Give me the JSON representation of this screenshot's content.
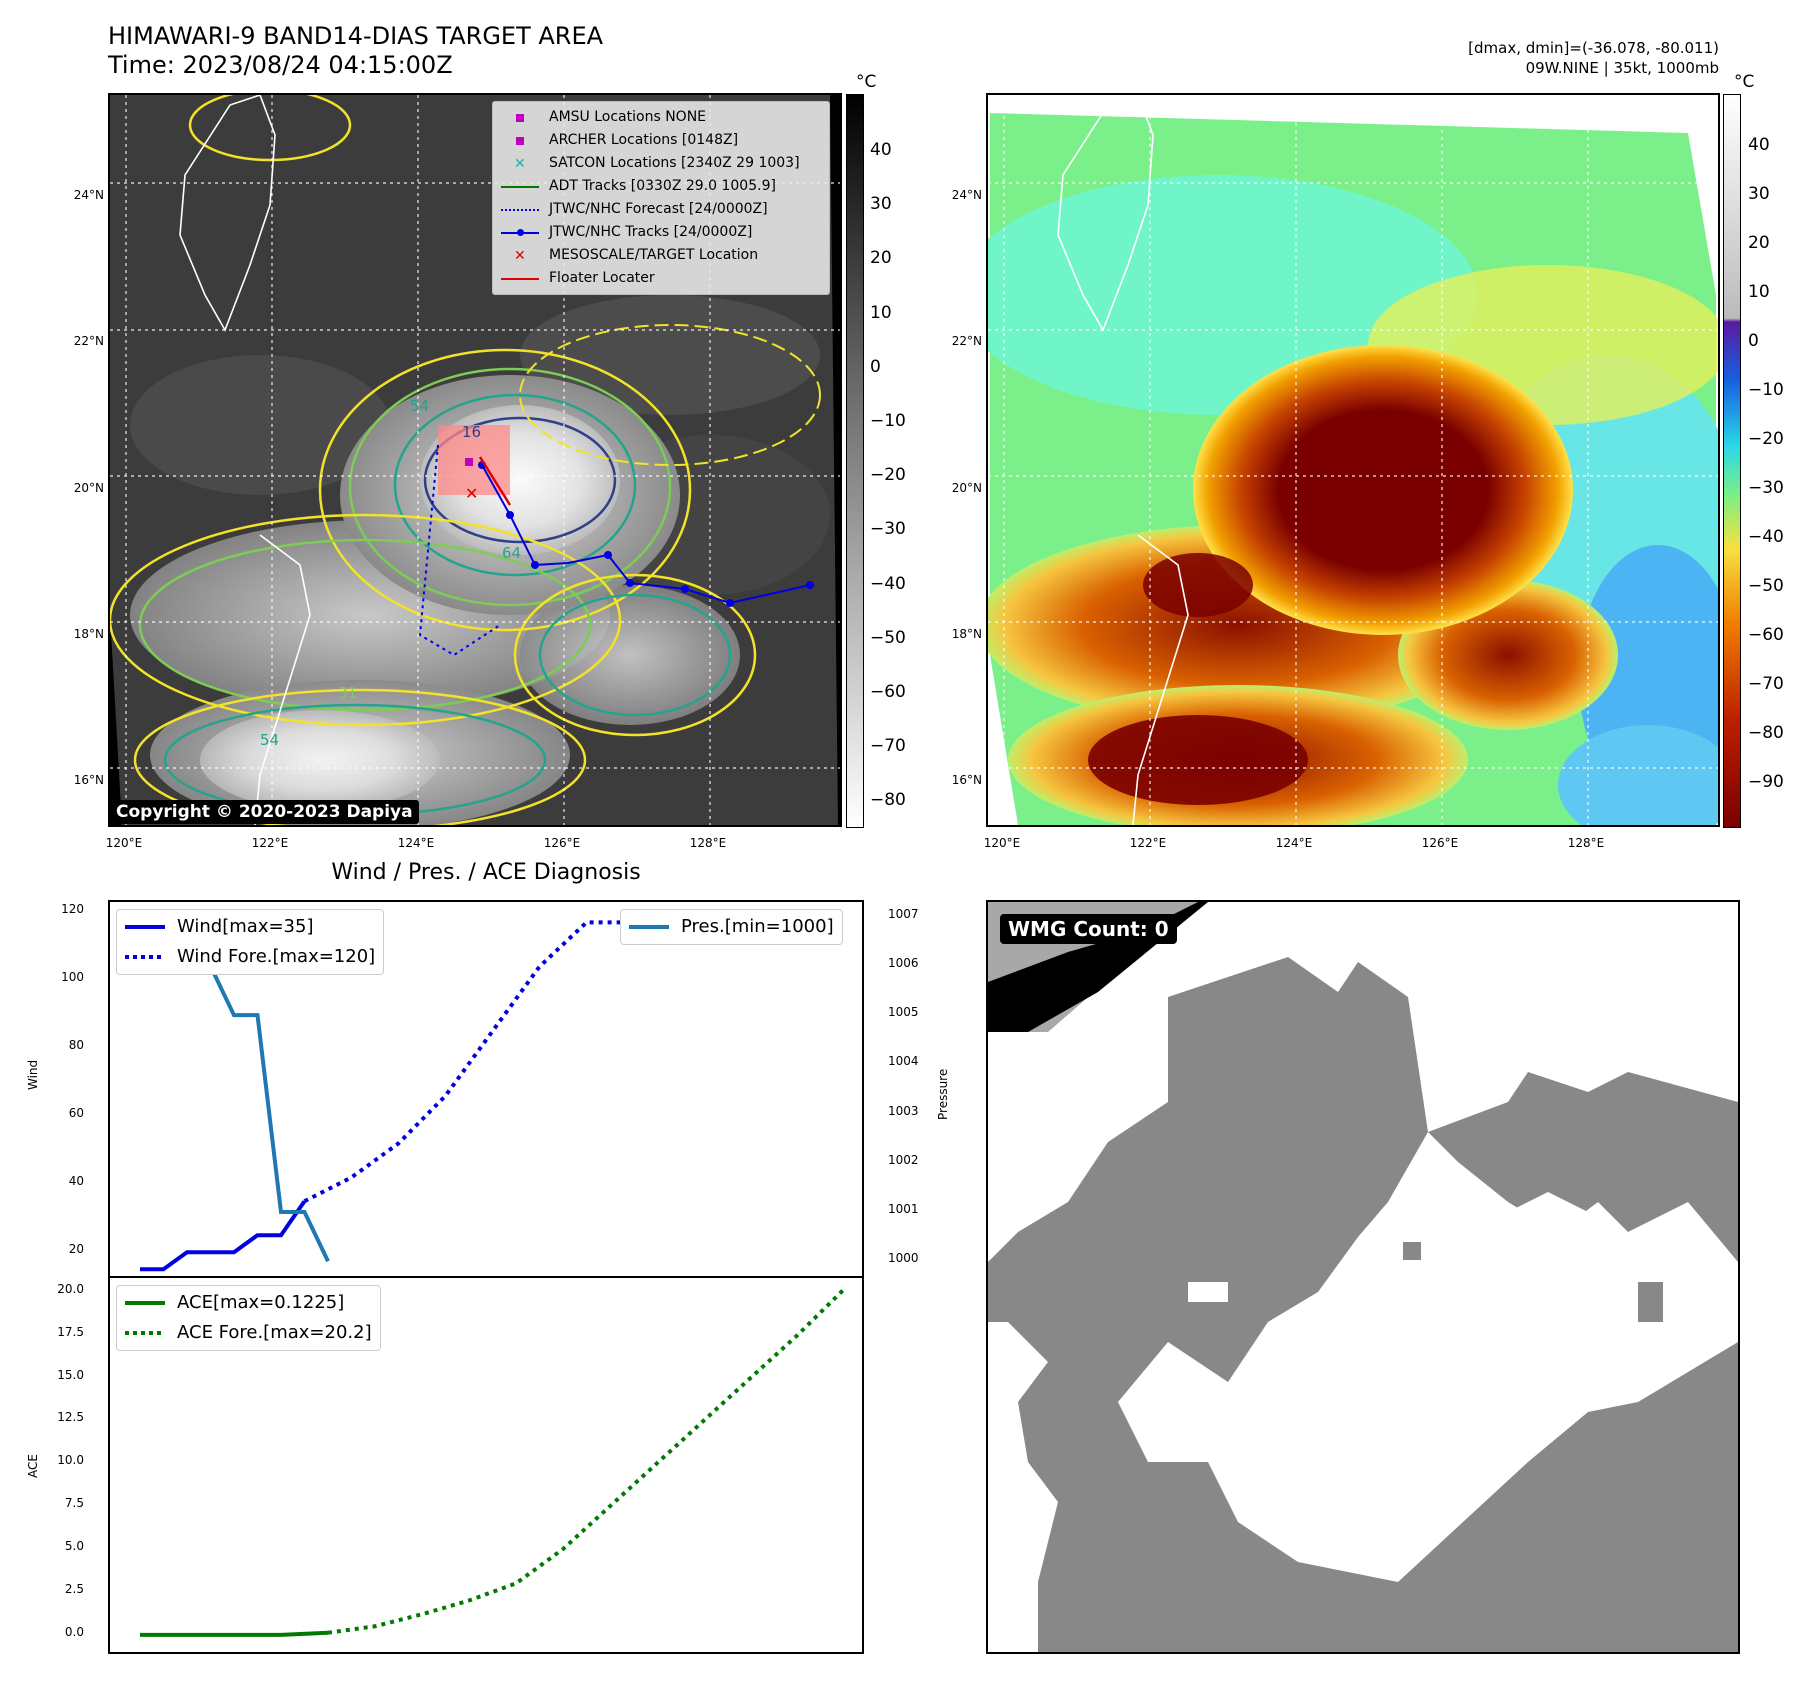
{
  "header": {
    "title_line1": "HIMAWARI-9 BAND14-DIAS TARGET AREA",
    "title_line2": "Time: 2023/08/24 04:15:00Z",
    "right_line1": "[dmax, dmin]=(-36.078, -80.011)",
    "right_line2": "09W.NINE | 35kt, 1000mb"
  },
  "map_axes": {
    "lat_labels": [
      "24°N",
      "22°N",
      "20°N",
      "18°N",
      "16°N"
    ],
    "lon_labels": [
      "120°E",
      "122°E",
      "124°E",
      "126°E",
      "128°E"
    ]
  },
  "left_map": {
    "copyright": "Copyright © 2020-2023 Dapiya",
    "contour_labels": [
      "54",
      "16",
      "64",
      "31",
      "54"
    ],
    "legend": [
      {
        "label": "AMSU Locations NONE",
        "marker": "square",
        "color": "#c000c0"
      },
      {
        "label": "ARCHER Locations [0148Z]",
        "marker": "square",
        "color": "#c000c0"
      },
      {
        "label": "SATCON Locations [2340Z 29 1003]",
        "marker": "x",
        "color": "#1ab0b0"
      },
      {
        "label": "ADT Tracks [0330Z 29.0 1005.9]",
        "marker": "line",
        "color": "#007a00"
      },
      {
        "label": "JTWC/NHC Forecast [24/0000Z]",
        "marker": "dotted",
        "color": "#0000e0"
      },
      {
        "label": "JTWC/NHC Tracks [24/0000Z]",
        "marker": "line-dot",
        "color": "#0000e0"
      },
      {
        "label": "MESOSCALE/TARGET Location",
        "marker": "x",
        "color": "#e00000"
      },
      {
        "label": "Floater Locater",
        "marker": "line",
        "color": "#e00000"
      }
    ],
    "colorbar": {
      "unit": "°C",
      "ticks": [
        "40",
        "30",
        "20",
        "10",
        "0",
        "−10",
        "−20",
        "−30",
        "−40",
        "−50",
        "−60",
        "−70",
        "−80"
      ]
    }
  },
  "right_map": {
    "colorbar": {
      "unit": "°C",
      "ticks": [
        "40",
        "30",
        "20",
        "10",
        "0",
        "−10",
        "−20",
        "−30",
        "−40",
        "−50",
        "−60",
        "−70",
        "−80",
        "−90"
      ]
    }
  },
  "wmg": {
    "label": "WMG Count: 0"
  },
  "chart_data": [
    {
      "type": "line",
      "title": "Wind / Pres. / ACE Diagnosis",
      "ylabel": "Wind",
      "y2label": "Pressure",
      "ylim": [
        13,
        123
      ],
      "y2lim": [
        999.7,
        1007.3
      ],
      "yticks": [
        "120",
        "100",
        "80",
        "60",
        "40",
        "20"
      ],
      "y2ticks": [
        "1007",
        "1006",
        "1005",
        "1004",
        "1003",
        "1002",
        "1001",
        "1000"
      ],
      "series": [
        {
          "name": "Wind[max=35]",
          "color": "#0000e0",
          "style": "solid",
          "axis": "left",
          "x": [
            0,
            1,
            2,
            3,
            4,
            5,
            6,
            7
          ],
          "y": [
            15,
            15,
            20,
            20,
            20,
            25,
            25,
            35
          ]
        },
        {
          "name": "Wind Fore.[max=120]",
          "color": "#0000e0",
          "style": "dotted",
          "axis": "left",
          "x": [
            7,
            9,
            11,
            13,
            15,
            17,
            19,
            21,
            23,
            25,
            27,
            29
          ],
          "y": [
            35,
            42,
            52,
            66,
            85,
            104,
            117,
            117,
            120,
            120,
            120,
            120
          ]
        },
        {
          "name": "Pres.[min=1000]",
          "color": "#1f77b4",
          "style": "solid",
          "axis": "right",
          "x": [
            1,
            2,
            4,
            5,
            6,
            7,
            8
          ],
          "y": [
            1007,
            1007,
            1005,
            1005,
            1001,
            1001,
            1000
          ]
        }
      ]
    },
    {
      "type": "line",
      "ylabel": "ACE",
      "ylim": [
        -1,
        20.8
      ],
      "yticks": [
        "20.0",
        "17.5",
        "15.0",
        "12.5",
        "10.0",
        "7.5",
        "5.0",
        "2.5",
        "0.0"
      ],
      "series": [
        {
          "name": "ACE[max=0.1225]",
          "color": "#007a00",
          "style": "solid",
          "x": [
            0,
            2,
            4,
            6,
            8
          ],
          "y": [
            0,
            0,
            0,
            0,
            0.1225
          ]
        },
        {
          "name": "ACE Fore.[max=20.2]",
          "color": "#007a00",
          "style": "dotted",
          "x": [
            8,
            10,
            12,
            14,
            16,
            18,
            20,
            22,
            24,
            26,
            28,
            30
          ],
          "y": [
            0.1225,
            0.5,
            1.2,
            2.0,
            3.0,
            5.0,
            7.5,
            10.0,
            12.5,
            15.0,
            17.5,
            20.2
          ]
        }
      ]
    }
  ]
}
